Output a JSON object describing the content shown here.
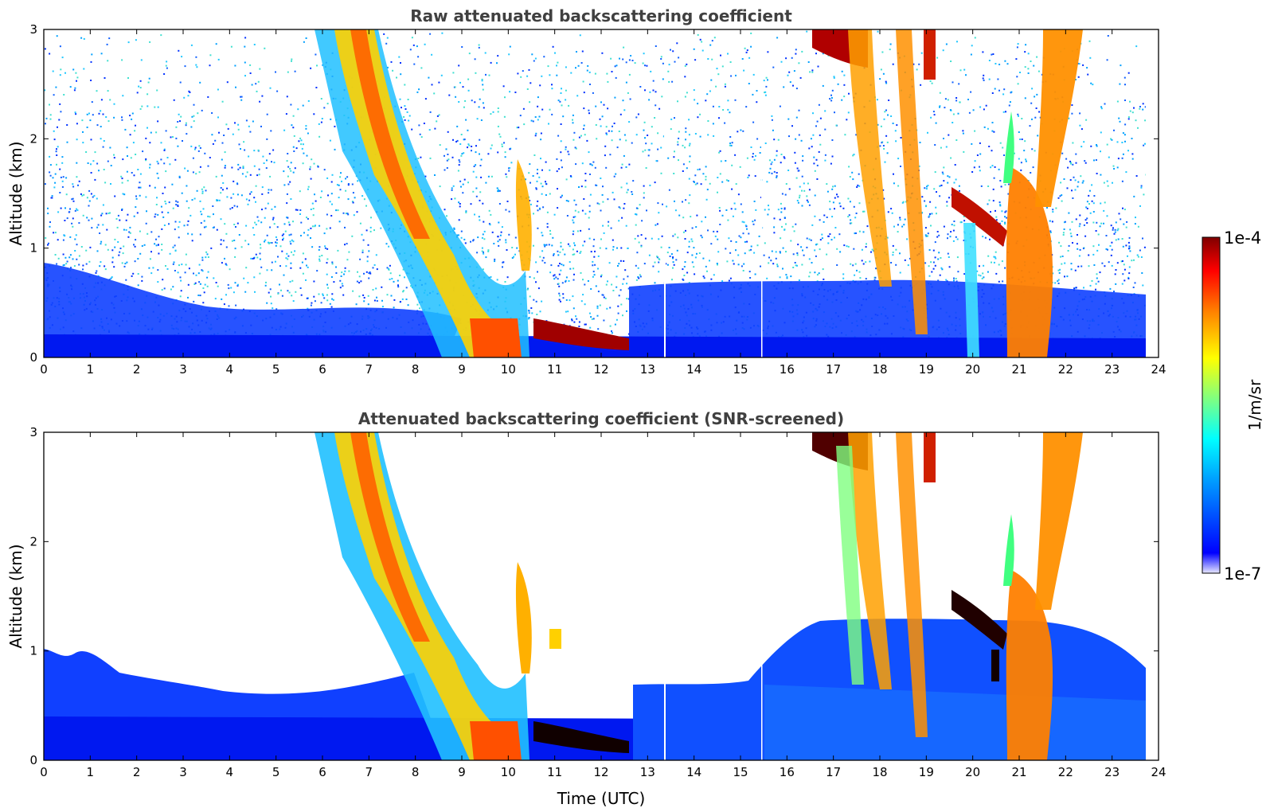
{
  "chart_data": [
    {
      "type": "heatmap",
      "title": "Raw attenuated backscattering coefficient",
      "xlabel": "",
      "ylabel": "Altitude (km)",
      "xlim": [
        0,
        24
      ],
      "ylim": [
        0,
        3
      ],
      "xticks": [
        "0",
        "1",
        "2",
        "3",
        "4",
        "5",
        "6",
        "7",
        "8",
        "9",
        "10",
        "11",
        "12",
        "13",
        "14",
        "15",
        "16",
        "17",
        "18",
        "19",
        "20",
        "21",
        "22",
        "23",
        "24"
      ],
      "yticks": [
        "0",
        "1",
        "2",
        "3"
      ],
      "colorscale": "jet, log",
      "features": [
        {
          "name": "descending cloud band",
          "time_start": 6.8,
          "time_end": 10.2,
          "alt_top": 3.0,
          "alt_bottom": 0.0
        },
        {
          "name": "low cloud layer",
          "time_start": 10.6,
          "time_end": 12.5,
          "alt": 0.25
        },
        {
          "name": "cirrus fall streaks",
          "time_start": 16.7,
          "time_end": 19.3,
          "alt_top": 3.0,
          "alt_bottom": 0.5
        },
        {
          "name": "convective column",
          "time_start": 20.7,
          "time_end": 22.3,
          "alt_top": 3.0,
          "alt_bottom": 0.0
        }
      ]
    },
    {
      "type": "heatmap",
      "title": "Attenuated backscattering coefficient (SNR-screened)",
      "xlabel": "Time (UTC)",
      "ylabel": "Altitude (km)",
      "xlim": [
        0,
        24
      ],
      "ylim": [
        0,
        3
      ],
      "xticks": [
        "0",
        "1",
        "2",
        "3",
        "4",
        "5",
        "6",
        "7",
        "8",
        "9",
        "10",
        "11",
        "12",
        "13",
        "14",
        "15",
        "16",
        "17",
        "18",
        "19",
        "20",
        "21",
        "22",
        "23",
        "24"
      ],
      "yticks": [
        "0",
        "1",
        "2",
        "3"
      ],
      "colorscale": "jet, log"
    }
  ],
  "colorbar": {
    "label": "1/m/sr",
    "max_label": "1e-4",
    "min_label": "1e-7",
    "max_value": 0.0001,
    "min_value": 1e-07,
    "colors": [
      "#e8e8ff",
      "#0000ff",
      "#00a0ff",
      "#00ffff",
      "#80ff80",
      "#ffff00",
      "#ff8000",
      "#ff0000",
      "#800000"
    ]
  }
}
